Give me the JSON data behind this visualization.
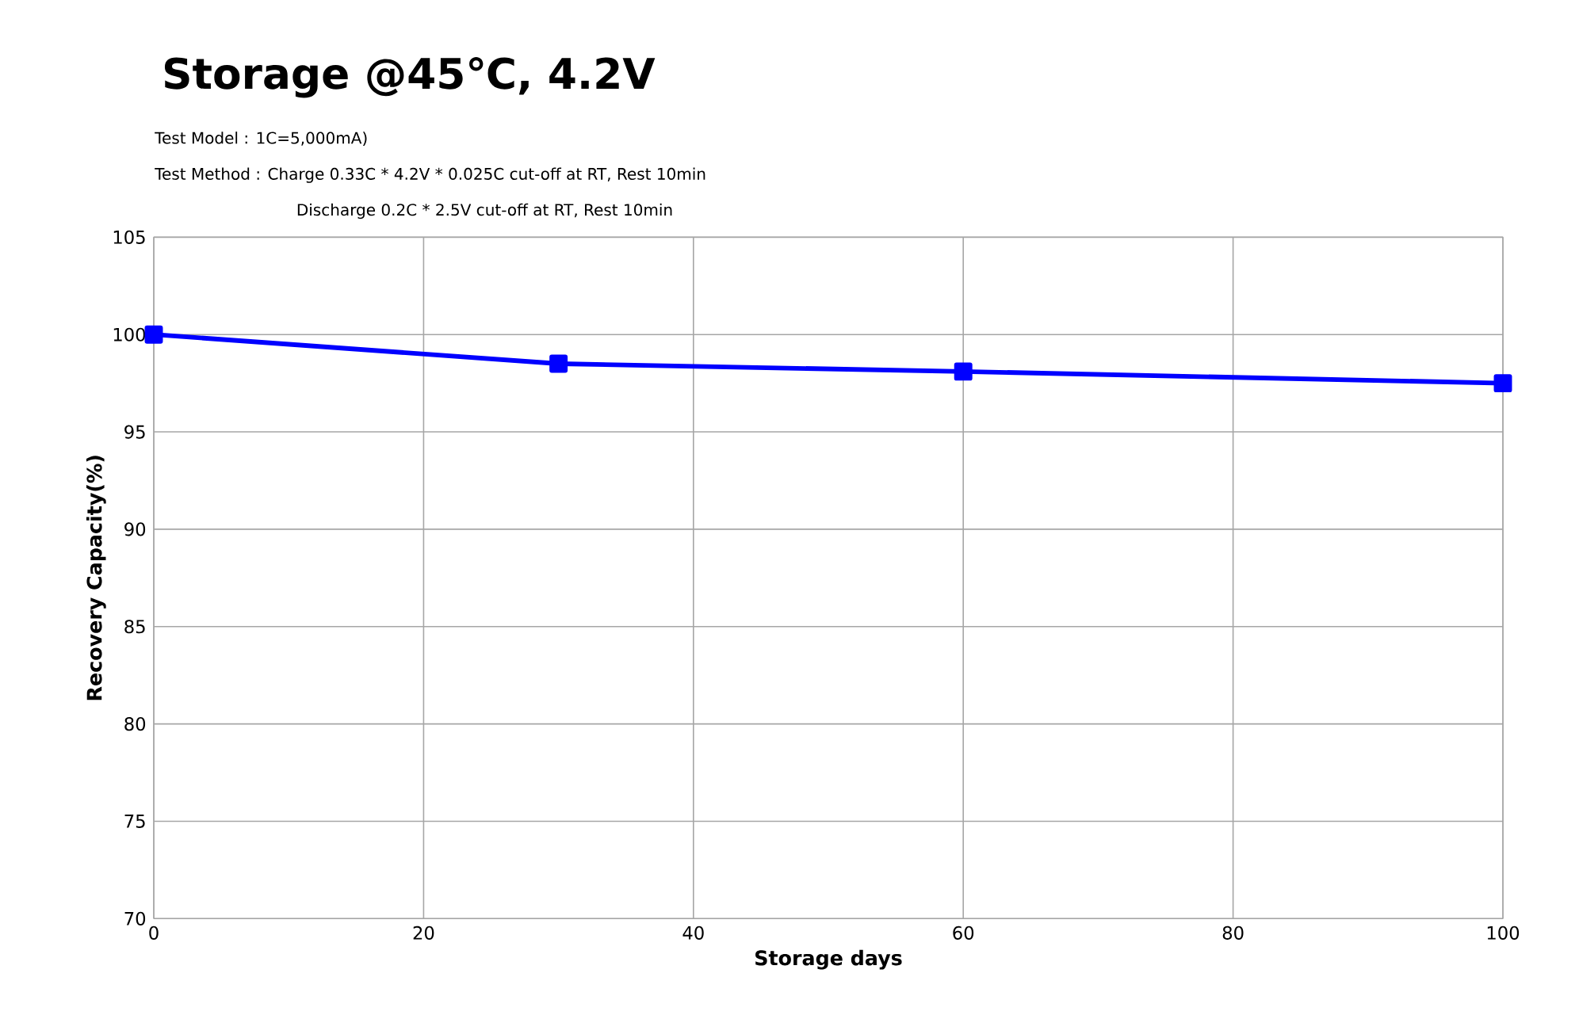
{
  "chart_data": {
    "type": "line",
    "title": "Storage @45℃, 4.2V",
    "annotations": [
      "Test Model : 1C=5,000mA)",
      "Test Method : Charge 0.33C * 4.2V * 0.025C cut-off at RT, Rest 10min",
      "Discharge 0.2C * 2.5V cut-off at RT, Rest 10min"
    ],
    "xlabel": "Storage days",
    "ylabel": "Recovery Capacity(%)",
    "x": [
      0,
      30,
      60,
      100
    ],
    "series": [
      {
        "color": "#0000ff",
        "values": [
          100,
          98.5,
          98.1,
          97.5
        ]
      }
    ],
    "xlim": [
      0,
      100
    ],
    "xticks": [
      0,
      20,
      40,
      60,
      80,
      100
    ],
    "ylim": [
      70,
      105
    ],
    "yticks": [
      70,
      75,
      80,
      85,
      90,
      95,
      100,
      105
    ],
    "grid": true,
    "marker": "square",
    "line_style": "solid"
  }
}
